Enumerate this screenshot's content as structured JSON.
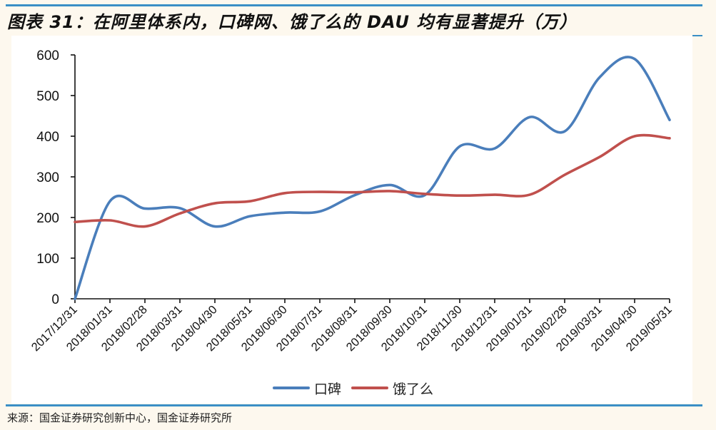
{
  "header": {
    "title": "图表 31：在阿里体系内，口碑网、饿了么的 DAU 均有显著提升（万）"
  },
  "footer": {
    "source": "来源：国金证券研究创新中心，国金证券研究所"
  },
  "legend": {
    "items": [
      {
        "label": "口碑",
        "color": "#4a7ebb"
      },
      {
        "label": "饿了么",
        "color": "#c0504d"
      }
    ]
  },
  "chart_data": {
    "type": "line",
    "title": "在阿里体系内，口碑网、饿了么的DAU均有显著提升（万）",
    "xlabel": "",
    "ylabel": "",
    "ylim": [
      0,
      600
    ],
    "yticks": [
      0,
      100,
      200,
      300,
      400,
      500,
      600
    ],
    "grid": false,
    "legend_position": "bottom",
    "smooth": true,
    "categories": [
      "2017/12/31",
      "2018/01/31",
      "2018/02/28",
      "2018/03/31",
      "2018/04/30",
      "2018/05/31",
      "2018/06/30",
      "2018/07/31",
      "2018/08/31",
      "2018/09/30",
      "2018/10/31",
      "2018/11/30",
      "2018/12/31",
      "2019/01/31",
      "2019/02/28",
      "2019/03/31",
      "2019/04/30",
      "2019/05/31"
    ],
    "series": [
      {
        "name": "口碑",
        "color": "#4a7ebb",
        "values": [
          0,
          240,
          222,
          223,
          178,
          203,
          212,
          215,
          255,
          280,
          255,
          375,
          370,
          447,
          412,
          545,
          590,
          440
        ]
      },
      {
        "name": "饿了么",
        "color": "#c0504d",
        "values": [
          189,
          193,
          178,
          210,
          235,
          240,
          260,
          263,
          262,
          265,
          258,
          254,
          256,
          256,
          305,
          349,
          400,
          395
        ]
      }
    ]
  }
}
